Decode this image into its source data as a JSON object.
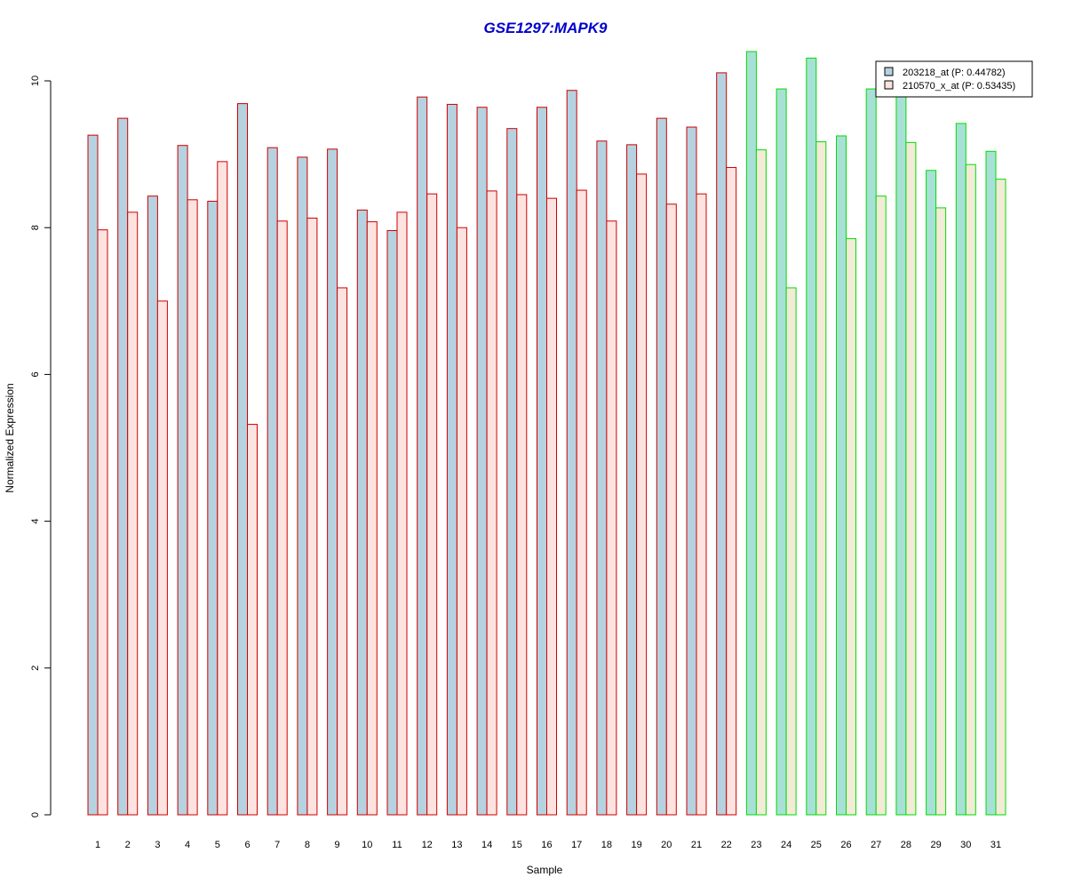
{
  "chart_data": {
    "type": "bar",
    "title": "GSE1297:MAPK9",
    "xlabel": "Sample",
    "ylabel": "Normalized Expression",
    "ylim": [
      0,
      10.5
    ],
    "yticks": [
      "0",
      "2",
      "4",
      "6",
      "8",
      "10"
    ],
    "categories": [
      "1",
      "2",
      "3",
      "4",
      "5",
      "6",
      "7",
      "8",
      "9",
      "10",
      "11",
      "12",
      "13",
      "14",
      "15",
      "16",
      "17",
      "18",
      "19",
      "20",
      "21",
      "22",
      "23",
      "24",
      "25",
      "26",
      "27",
      "28",
      "29",
      "30",
      "31"
    ],
    "series": [
      {
        "name": "203218_at (P: 0.44782)",
        "values": [
          9.26,
          9.49,
          8.43,
          9.12,
          8.36,
          9.69,
          9.09,
          8.96,
          9.07,
          8.24,
          7.96,
          9.78,
          9.68,
          9.64,
          9.35,
          9.64,
          9.87,
          9.18,
          9.13,
          9.49,
          9.37,
          10.11,
          10.4,
          9.89,
          10.31,
          9.25,
          9.89,
          9.8,
          8.78,
          9.42,
          9.04
        ]
      },
      {
        "name": "210570_x_at (P: 0.53435)",
        "values": [
          7.97,
          8.21,
          7.0,
          8.38,
          8.9,
          5.32,
          8.09,
          8.13,
          7.18,
          8.08,
          8.21,
          8.46,
          8.0,
          8.5,
          8.45,
          8.4,
          8.51,
          8.09,
          8.73,
          8.32,
          8.46,
          8.82,
          9.06,
          7.18,
          9.17,
          7.85,
          8.43,
          9.16,
          8.27,
          8.86,
          8.66
        ]
      }
    ],
    "group_split_index": 22,
    "colors": {
      "group1_border": "#cc0000",
      "group2_border": "#00dd00",
      "group1_series1_fill": "#b6d2e0",
      "group1_series2_fill": "#fde3e0",
      "group2_series1_fill": "#a8e0d8",
      "group2_series2_fill": "#f3ead8",
      "legend_series1_fill": "#b6d2e0",
      "legend_series2_fill": "#fde3e0",
      "title": "#0000cc"
    },
    "legend_position": "top-right",
    "grid": false
  }
}
